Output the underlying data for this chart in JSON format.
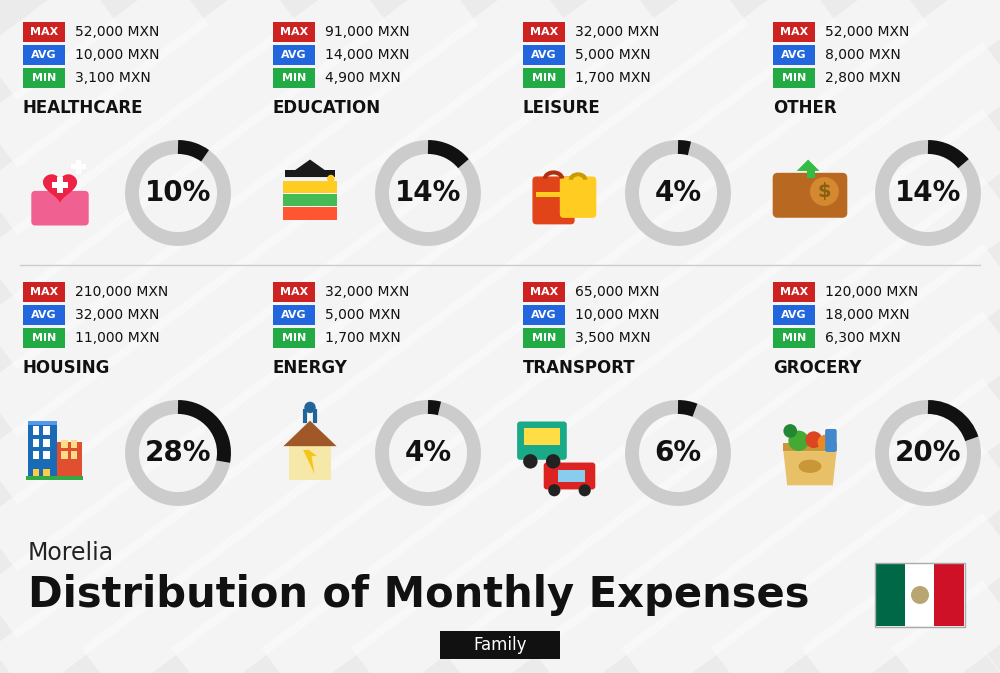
{
  "title": "Distribution of Monthly Expenses",
  "subtitle": "Morelia",
  "family_label": "Family",
  "bg_color": "#ebebeb",
  "stripe_color": "#ffffff",
  "categories": [
    {
      "name": "HOUSING",
      "percent": 28,
      "min": "11,000 MXN",
      "avg": "32,000 MXN",
      "max": "210,000 MXN",
      "row": 0,
      "col": 0
    },
    {
      "name": "ENERGY",
      "percent": 4,
      "min": "1,700 MXN",
      "avg": "5,000 MXN",
      "max": "32,000 MXN",
      "row": 0,
      "col": 1
    },
    {
      "name": "TRANSPORT",
      "percent": 6,
      "min": "3,500 MXN",
      "avg": "10,000 MXN",
      "max": "65,000 MXN",
      "row": 0,
      "col": 2
    },
    {
      "name": "GROCERY",
      "percent": 20,
      "min": "6,300 MXN",
      "avg": "18,000 MXN",
      "max": "120,000 MXN",
      "row": 0,
      "col": 3
    },
    {
      "name": "HEALTHCARE",
      "percent": 10,
      "min": "3,100 MXN",
      "avg": "10,000 MXN",
      "max": "52,000 MXN",
      "row": 1,
      "col": 0
    },
    {
      "name": "EDUCATION",
      "percent": 14,
      "min": "4,900 MXN",
      "avg": "14,000 MXN",
      "max": "91,000 MXN",
      "row": 1,
      "col": 1
    },
    {
      "name": "LEISURE",
      "percent": 4,
      "min": "1,700 MXN",
      "avg": "5,000 MXN",
      "max": "32,000 MXN",
      "row": 1,
      "col": 2
    },
    {
      "name": "OTHER",
      "percent": 14,
      "min": "2,800 MXN",
      "avg": "8,000 MXN",
      "max": "52,000 MXN",
      "row": 1,
      "col": 3
    }
  ],
  "min_color": "#22aa44",
  "avg_color": "#2266dd",
  "max_color": "#cc2222",
  "donut_bg_color": "#cccccc",
  "donut_fg_color": "#111111",
  "title_fontsize": 30,
  "subtitle_fontsize": 17,
  "family_fontsize": 12,
  "category_fontsize": 12,
  "value_fontsize": 10,
  "percent_fontsize": 20,
  "label_fontsize": 8
}
